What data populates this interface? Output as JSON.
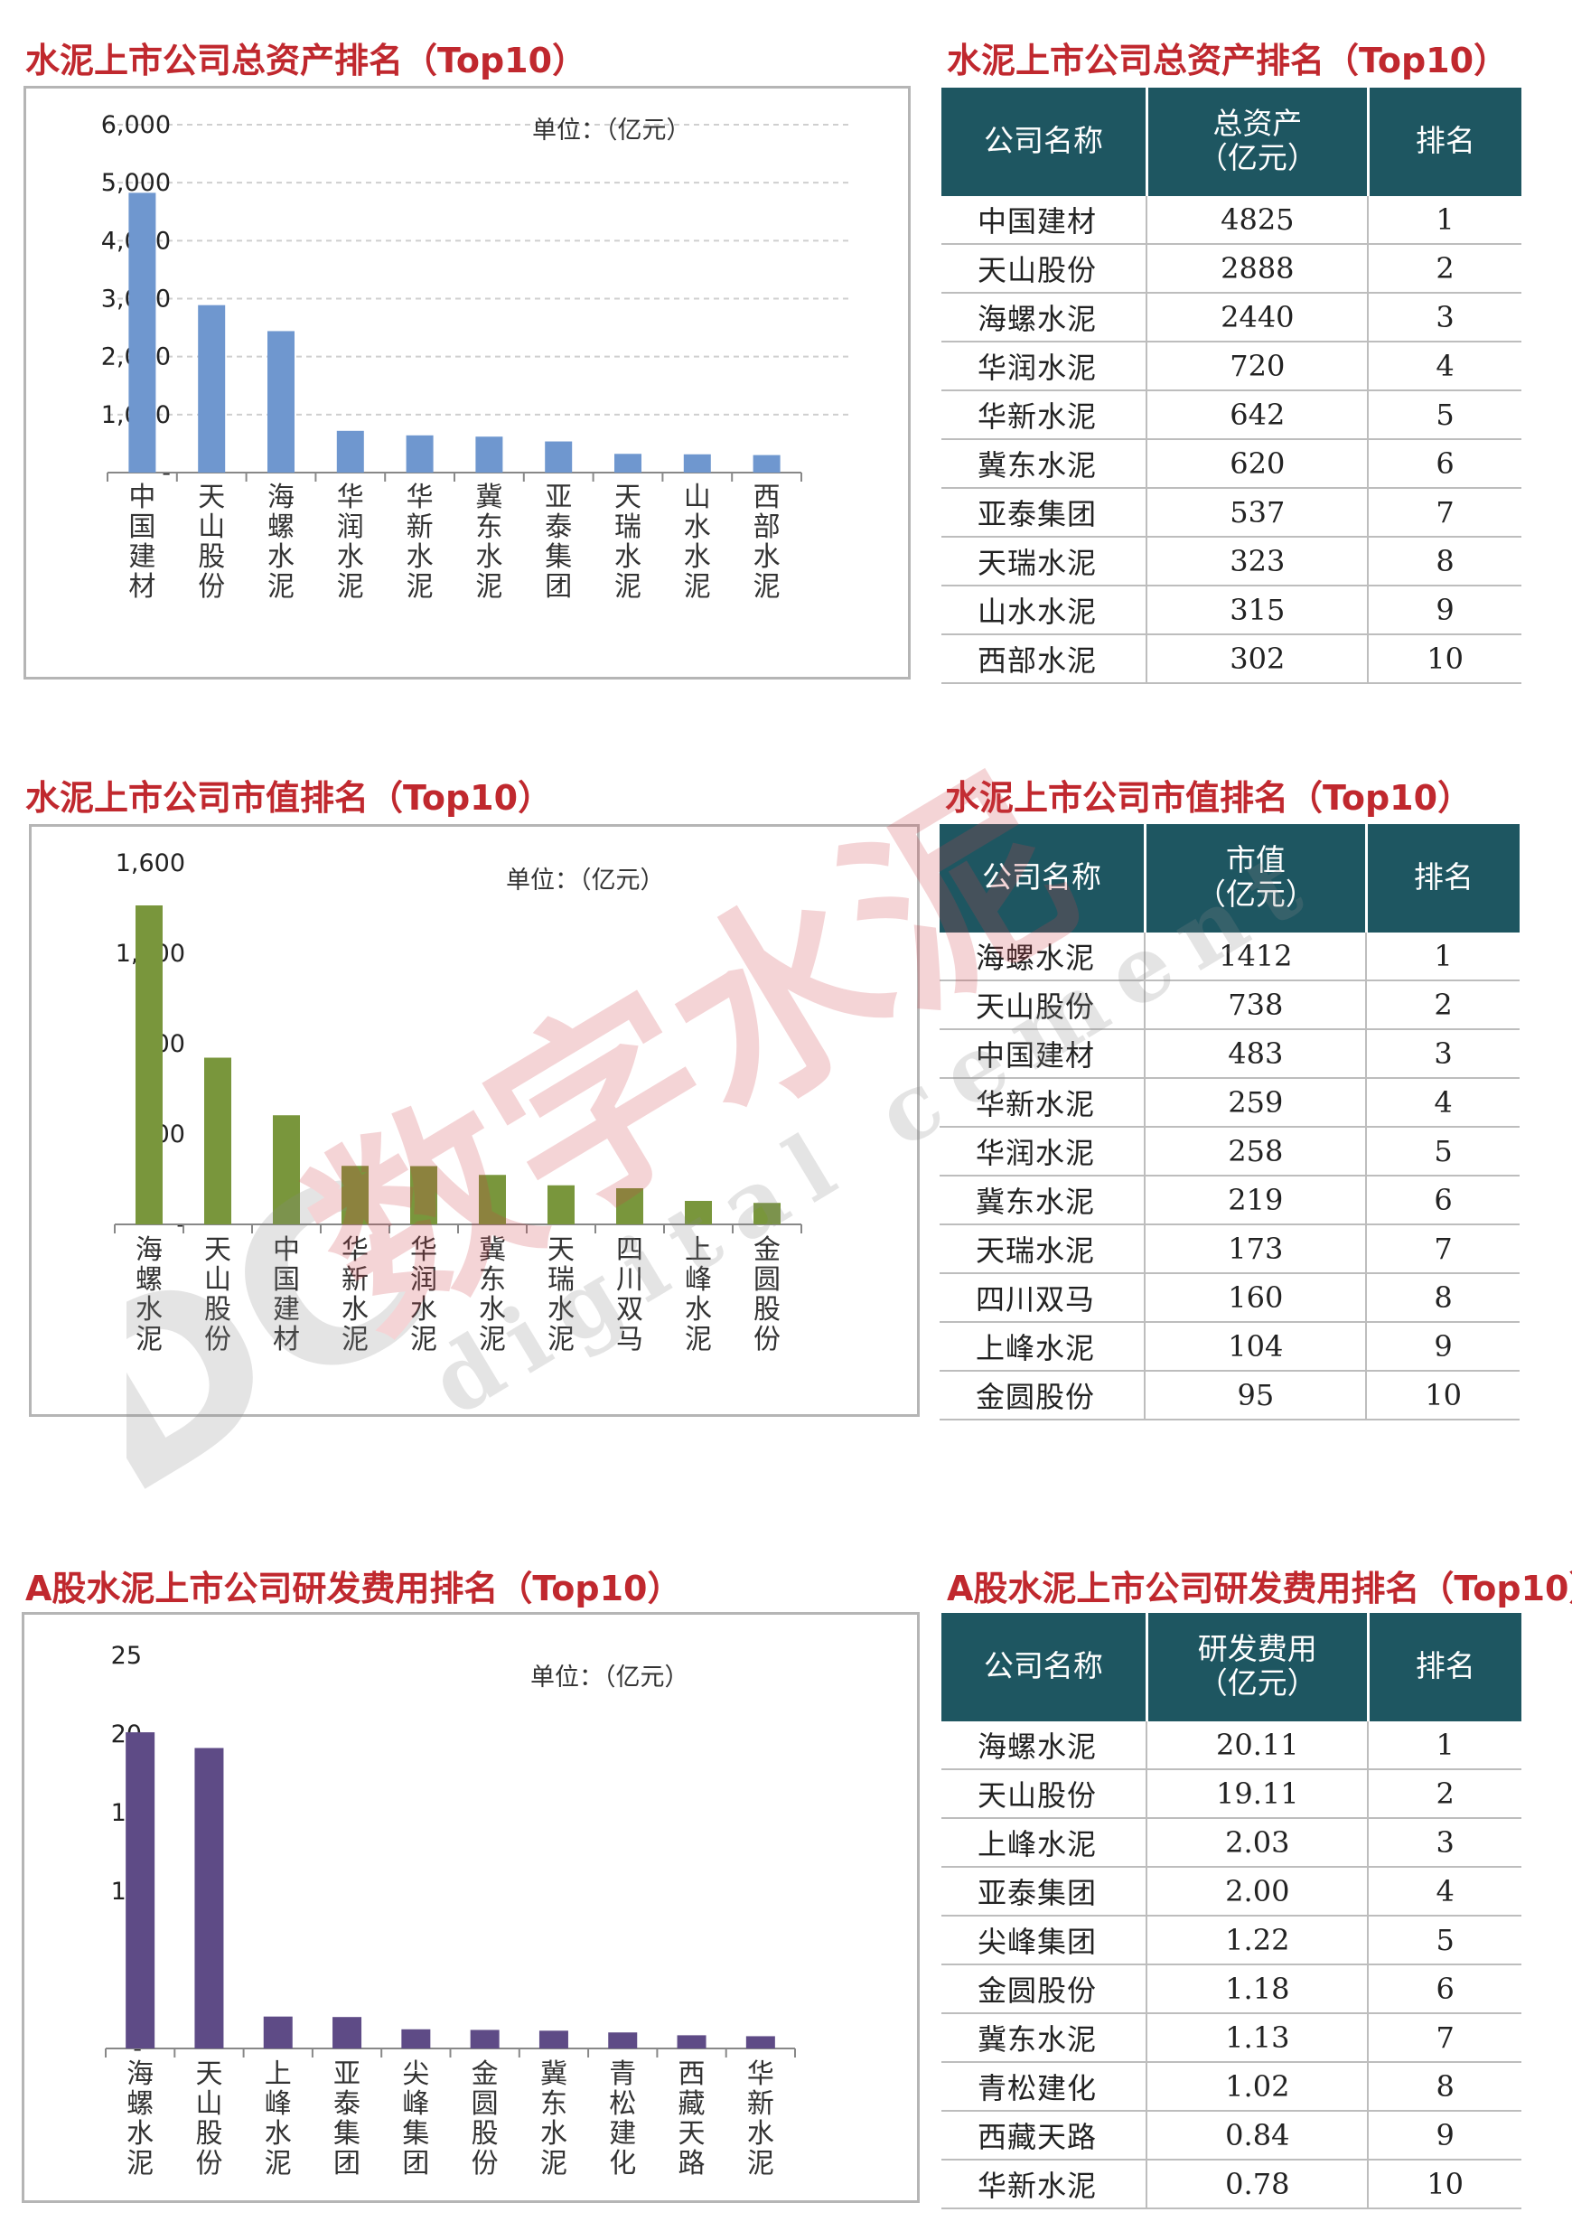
{
  "watermark": {
    "logo": "DC",
    "text_cn": "数字水泥",
    "text_en": "digital cement"
  },
  "sections": [
    {
      "chart_title": "水泥上市公司总资产排名（Top10）",
      "table_title": "水泥上市公司总资产排名（Top10）",
      "table_headers": [
        "公司名称",
        "总资产（亿元）",
        "排名"
      ],
      "header_lines": [
        [
          "公司名称"
        ],
        [
          "总资产",
          "（亿元）"
        ],
        [
          "排名"
        ]
      ],
      "rows": [
        {
          "name": "中国建材",
          "value": "4825",
          "rank": "1"
        },
        {
          "name": "天山股份",
          "value": "2888",
          "rank": "2"
        },
        {
          "name": "海螺水泥",
          "value": "2440",
          "rank": "3"
        },
        {
          "name": "华润水泥",
          "value": "720",
          "rank": "4"
        },
        {
          "name": "华新水泥",
          "value": "642",
          "rank": "5"
        },
        {
          "name": "冀东水泥",
          "value": "620",
          "rank": "6"
        },
        {
          "name": "亚泰集团",
          "value": "537",
          "rank": "7"
        },
        {
          "name": "天瑞水泥",
          "value": "323",
          "rank": "8"
        },
        {
          "name": "山水水泥",
          "value": "315",
          "rank": "9"
        },
        {
          "name": "西部水泥",
          "value": "302",
          "rank": "10"
        }
      ],
      "color": "#6f97cf"
    },
    {
      "chart_title": "水泥上市公司市值排名（Top10）",
      "table_title": "水泥上市公司市值排名（Top10）",
      "table_headers": [
        "公司名称",
        "市值（亿元）",
        "排名"
      ],
      "header_lines": [
        [
          "公司名称"
        ],
        [
          "市值",
          "（亿元）"
        ],
        [
          "排名"
        ]
      ],
      "rows": [
        {
          "name": "海螺水泥",
          "value": "1412",
          "rank": "1"
        },
        {
          "name": "天山股份",
          "value": "738",
          "rank": "2"
        },
        {
          "name": "中国建材",
          "value": "483",
          "rank": "3"
        },
        {
          "name": "华新水泥",
          "value": "259",
          "rank": "4"
        },
        {
          "name": "华润水泥",
          "value": "258",
          "rank": "5"
        },
        {
          "name": "冀东水泥",
          "value": "219",
          "rank": "6"
        },
        {
          "name": "天瑞水泥",
          "value": "173",
          "rank": "7"
        },
        {
          "name": "四川双马",
          "value": "160",
          "rank": "8"
        },
        {
          "name": "上峰水泥",
          "value": "104",
          "rank": "9"
        },
        {
          "name": "金圆股份",
          "value": "95",
          "rank": "10"
        }
      ],
      "color": "#79963c"
    },
    {
      "chart_title": "A股水泥上市公司研发费用排名（Top10）",
      "table_title": "A股水泥上市公司研发费用排名（Top10）",
      "table_headers": [
        "公司名称",
        "研发费用（亿元）",
        "排名"
      ],
      "header_lines": [
        [
          "公司名称"
        ],
        [
          "研发费用",
          "（亿元）"
        ],
        [
          "排名"
        ]
      ],
      "rows": [
        {
          "name": "海螺水泥",
          "value": "20.11",
          "rank": "1"
        },
        {
          "name": "天山股份",
          "value": "19.11",
          "rank": "2"
        },
        {
          "name": "上峰水泥",
          "value": "2.03",
          "rank": "3"
        },
        {
          "name": "亚泰集团",
          "value": "2.00",
          "rank": "4"
        },
        {
          "name": "尖峰集团",
          "value": "1.22",
          "rank": "5"
        },
        {
          "name": "金圆股份",
          "value": "1.18",
          "rank": "6"
        },
        {
          "name": "冀东水泥",
          "value": "1.13",
          "rank": "7"
        },
        {
          "name": "青松建化",
          "value": "1.02",
          "rank": "8"
        },
        {
          "name": "西藏天路",
          "value": "0.84",
          "rank": "9"
        },
        {
          "name": "华新水泥",
          "value": "0.78",
          "rank": "10"
        }
      ],
      "color": "#5e4b86"
    }
  ],
  "chart_data": [
    {
      "type": "bar",
      "title": "水泥上市公司总资产排名（Top10）",
      "unit_label": "单位：（亿元）",
      "categories": [
        "中国建材",
        "天山股份",
        "海螺水泥",
        "华润水泥",
        "华新水泥",
        "冀东水泥",
        "亚泰集团",
        "天瑞水泥",
        "山水水泥",
        "西部水泥"
      ],
      "values": [
        4825,
        2888,
        2440,
        720,
        642,
        620,
        537,
        323,
        315,
        302
      ],
      "ylim": [
        0,
        6000
      ],
      "yticks": [
        0,
        1000,
        2000,
        3000,
        4000,
        5000,
        6000
      ],
      "ytick_labels": [
        "-",
        "1,000",
        "2,000",
        "3,000",
        "4,000",
        "5,000",
        "6,000"
      ],
      "grid": true,
      "color": "#6f97cf"
    },
    {
      "type": "bar",
      "title": "水泥上市公司市值排名（Top10）",
      "unit_label": "单位：（亿元）",
      "categories": [
        "海螺水泥",
        "天山股份",
        "中国建材",
        "华新水泥",
        "华润水泥",
        "冀东水泥",
        "天瑞水泥",
        "四川双马",
        "上峰水泥",
        "金圆股份"
      ],
      "values": [
        1412,
        738,
        483,
        259,
        258,
        219,
        173,
        160,
        104,
        95
      ],
      "ylim": [
        0,
        1600
      ],
      "yticks": [
        0,
        400,
        800,
        1200,
        1600
      ],
      "ytick_labels": [
        "-",
        "400",
        "800",
        "1,200",
        "1,600"
      ],
      "grid": false,
      "color": "#79963c"
    },
    {
      "type": "bar",
      "title": "A股水泥上市公司研发费用排名（Top10）",
      "unit_label": "单位：（亿元）",
      "categories": [
        "海螺水泥",
        "天山股份",
        "上峰水泥",
        "亚泰集团",
        "尖峰集团",
        "金圆股份",
        "冀东水泥",
        "青松建化",
        "西藏天路",
        "华新水泥"
      ],
      "values": [
        20.11,
        19.11,
        2.03,
        2.0,
        1.22,
        1.18,
        1.13,
        1.02,
        0.84,
        0.78
      ],
      "ylim": [
        0,
        25
      ],
      "yticks": [
        0,
        5,
        10,
        15,
        20,
        25
      ],
      "ytick_labels": [
        "-",
        "5",
        "10",
        "15",
        "20",
        "25"
      ],
      "grid": false,
      "color": "#5e4b86"
    }
  ]
}
